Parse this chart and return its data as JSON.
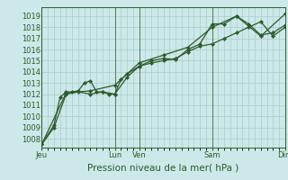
{
  "bg_color": "#cce8e8",
  "grid_color": "#aacccc",
  "line_color": "#2d5a2d",
  "marker_color": "#2d5a2d",
  "xlabel": "Pression niveau de la mer( hPa )",
  "xlabel_fontsize": 7.5,
  "tick_fontsize": 6.0,
  "ylim": [
    1007.2,
    1019.8
  ],
  "yticks": [
    1008,
    1009,
    1010,
    1011,
    1012,
    1013,
    1014,
    1015,
    1016,
    1017,
    1018,
    1019
  ],
  "day_labels": [
    "Jeu",
    "Lun",
    "Ven",
    "Sam",
    "Dim"
  ],
  "day_positions": [
    0.0,
    0.3,
    0.4,
    0.7,
    1.0
  ],
  "vline_positions": [
    0.0,
    0.3,
    0.4,
    0.7,
    1.0
  ],
  "xmin": 0.0,
  "xmax": 1.0,
  "series1_x": [
    0.0,
    0.05,
    0.075,
    0.1,
    0.125,
    0.15,
    0.175,
    0.2,
    0.225,
    0.25,
    0.275,
    0.3,
    0.325,
    0.35,
    0.4,
    0.45,
    0.5,
    0.55,
    0.6,
    0.65,
    0.7,
    0.75,
    0.8,
    0.85,
    0.9,
    0.95,
    1.0
  ],
  "series1_y": [
    1007.5,
    1009.2,
    1011.7,
    1012.2,
    1012.2,
    1012.3,
    1013.0,
    1013.2,
    1012.2,
    1012.2,
    1012.0,
    1012.0,
    1013.3,
    1013.8,
    1014.5,
    1015.0,
    1015.2,
    1015.1,
    1016.0,
    1016.5,
    1018.3,
    1018.3,
    1019.0,
    1018.3,
    1017.3,
    1017.5,
    1018.2
  ],
  "series2_x": [
    0.0,
    0.05,
    0.1,
    0.15,
    0.2,
    0.25,
    0.3,
    0.35,
    0.4,
    0.45,
    0.5,
    0.55,
    0.6,
    0.65,
    0.7,
    0.75,
    0.8,
    0.85,
    0.9,
    0.95,
    1.0
  ],
  "series2_y": [
    1007.5,
    1009.0,
    1012.0,
    1012.2,
    1012.0,
    1012.2,
    1012.0,
    1013.5,
    1014.5,
    1014.8,
    1015.0,
    1015.2,
    1015.8,
    1016.3,
    1016.5,
    1017.0,
    1017.5,
    1018.0,
    1018.5,
    1017.2,
    1018.0
  ],
  "series3_x": [
    0.0,
    0.1,
    0.2,
    0.3,
    0.4,
    0.5,
    0.6,
    0.7,
    0.8,
    0.9,
    1.0
  ],
  "series3_y": [
    1007.5,
    1012.1,
    1012.3,
    1012.8,
    1014.8,
    1015.5,
    1016.2,
    1018.0,
    1019.0,
    1017.2,
    1019.2
  ],
  "vline_color": "#557755",
  "spine_color": "#2d5a2d"
}
